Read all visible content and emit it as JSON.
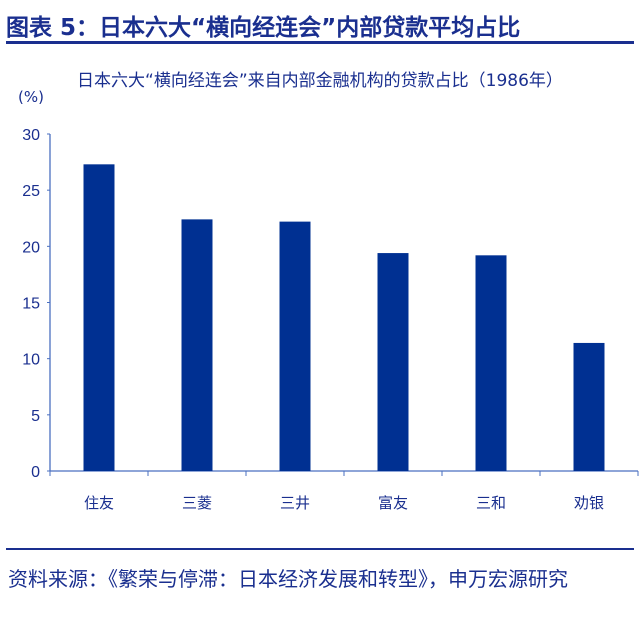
{
  "figure_title": "图表 5：日本六大“横向经连会”内部贷款平均占比",
  "source": "资料来源：《繁荣与停滞：日本经济发展和转型》，申万宏源研究",
  "colors": {
    "bar": "#003092",
    "text": "#1a2f8f",
    "axis": "#4a6fc0"
  },
  "chart_data": {
    "type": "bar",
    "title": "日本六大“横向经连会”来自内部金融机构的贷款占比（1986年）",
    "ylabel": "(%)",
    "xlabel": "",
    "categories": [
      "住友",
      "三菱",
      "三井",
      "富友",
      "三和",
      "劝银"
    ],
    "values": [
      27.3,
      22.4,
      22.2,
      19.4,
      19.2,
      11.4
    ],
    "ylim": [
      0,
      30
    ],
    "yticks": [
      "0",
      "5",
      "10",
      "15",
      "20",
      "25",
      "30"
    ],
    "grid": false
  }
}
